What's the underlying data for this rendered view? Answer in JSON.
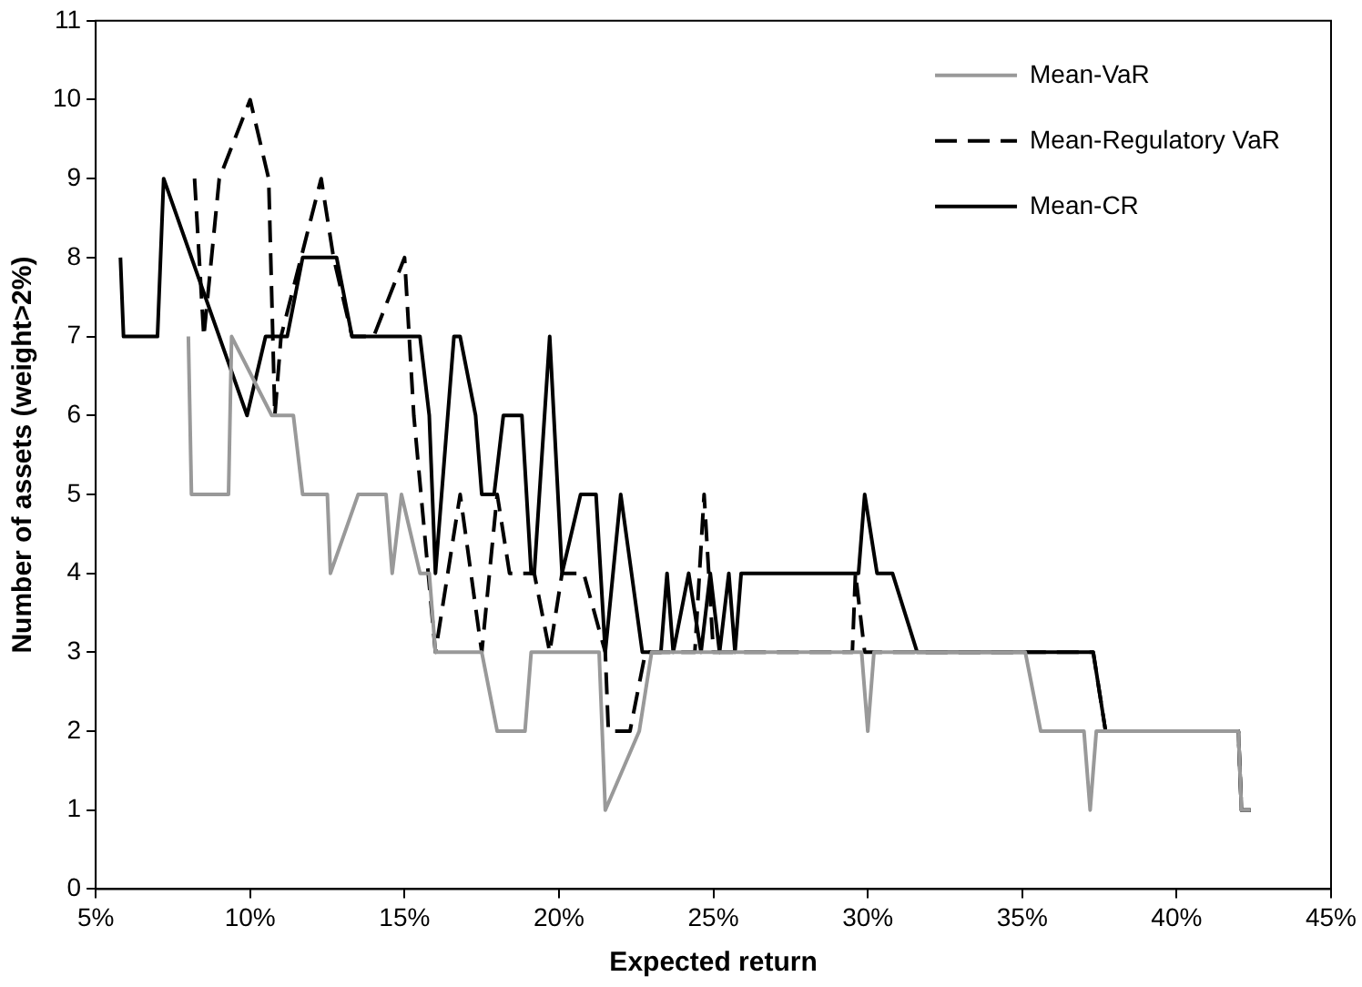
{
  "chart_data": {
    "type": "line",
    "xlabel": "Expected return",
    "ylabel": "Number of assets (weight>2%)",
    "xlim": [
      5,
      45
    ],
    "xticks": [
      {
        "value": 5,
        "label": "5%"
      },
      {
        "value": 10,
        "label": "10%"
      },
      {
        "value": 15,
        "label": "15%"
      },
      {
        "value": 20,
        "label": "20%"
      },
      {
        "value": 25,
        "label": "25%"
      },
      {
        "value": 30,
        "label": "30%"
      },
      {
        "value": 35,
        "label": "35%"
      },
      {
        "value": 40,
        "label": "40%"
      },
      {
        "value": 45,
        "label": "45%"
      }
    ],
    "ylim": [
      0,
      11
    ],
    "yticks": [
      0,
      1,
      2,
      3,
      4,
      5,
      6,
      7,
      8,
      9,
      10,
      11
    ],
    "grid": false,
    "legend": "top right",
    "marker": "none",
    "series": [
      {
        "name": "Mean-VaR",
        "color": "#999999",
        "line_style": "solid",
        "x": [
          8.0,
          8.1,
          9.3,
          9.4,
          10.7,
          11.4,
          11.7,
          12.5,
          12.6,
          13.5,
          14.4,
          14.6,
          14.9,
          15.5,
          15.8,
          16.0,
          17.5,
          18.0,
          18.9,
          19.1,
          21.3,
          21.5,
          22.6,
          23.0,
          29.8,
          30.0,
          30.2,
          35.1,
          35.6,
          37.0,
          37.2,
          37.4,
          42.0,
          42.1,
          42.4
        ],
        "values": [
          7,
          5,
          5,
          7,
          6,
          6,
          5,
          5,
          4,
          5,
          5,
          4,
          5,
          4,
          4,
          3,
          3,
          2,
          2,
          3,
          3,
          1,
          2,
          3,
          3,
          2,
          3,
          3,
          2,
          2,
          1,
          2,
          2,
          1,
          1
        ]
      },
      {
        "name": "Mean-Regulatory VaR",
        "color": "#000000",
        "line_style": "dashed",
        "x": [
          8.2,
          8.5,
          9.0,
          10.0,
          10.6,
          10.8,
          11.0,
          12.3,
          12.7,
          13.3,
          14.0,
          15.0,
          15.3,
          16.0,
          16.8,
          17.5,
          18.0,
          18.4,
          19.2,
          19.7,
          20.1,
          20.8,
          21.5,
          21.6,
          22.3,
          22.8,
          24.4,
          24.7,
          25.0,
          29.5,
          29.6,
          29.9,
          30.3,
          37.3,
          37.7,
          42.0,
          42.1,
          42.4
        ],
        "values": [
          9,
          7,
          9,
          10,
          9,
          6,
          7,
          9,
          8,
          7,
          7,
          8,
          6,
          3,
          5,
          3,
          5,
          4,
          4,
          3,
          4,
          4,
          3,
          2,
          2,
          3,
          3,
          5,
          3,
          3,
          4,
          3,
          3,
          3,
          2,
          2,
          1,
          1
        ]
      },
      {
        "name": "Mean-CR",
        "color": "#000000",
        "line_style": "solid",
        "x": [
          5.8,
          5.9,
          7.0,
          7.2,
          9.9,
          10.5,
          11.2,
          11.7,
          12.8,
          13.3,
          15.5,
          15.8,
          16.0,
          16.6,
          16.8,
          17.3,
          17.5,
          17.9,
          18.2,
          18.8,
          19.1,
          19.2,
          19.7,
          20.1,
          20.7,
          21.2,
          21.5,
          22.0,
          22.7,
          23.3,
          23.5,
          23.7,
          24.2,
          24.6,
          24.9,
          25.2,
          25.5,
          25.7,
          25.9,
          29.7,
          29.9,
          30.3,
          30.8,
          31.6,
          37.3,
          37.7,
          42.0,
          42.1,
          42.4
        ],
        "values": [
          8,
          7,
          7,
          9,
          6,
          7,
          7,
          8,
          8,
          7,
          7,
          6,
          4,
          7,
          7,
          6,
          5,
          5,
          6,
          6,
          4,
          4,
          7,
          4,
          5,
          5,
          3,
          5,
          3,
          3,
          4,
          3,
          4,
          3,
          4,
          3,
          4,
          3,
          4,
          4,
          5,
          4,
          4,
          3,
          3,
          2,
          2,
          1,
          1
        ]
      }
    ]
  }
}
